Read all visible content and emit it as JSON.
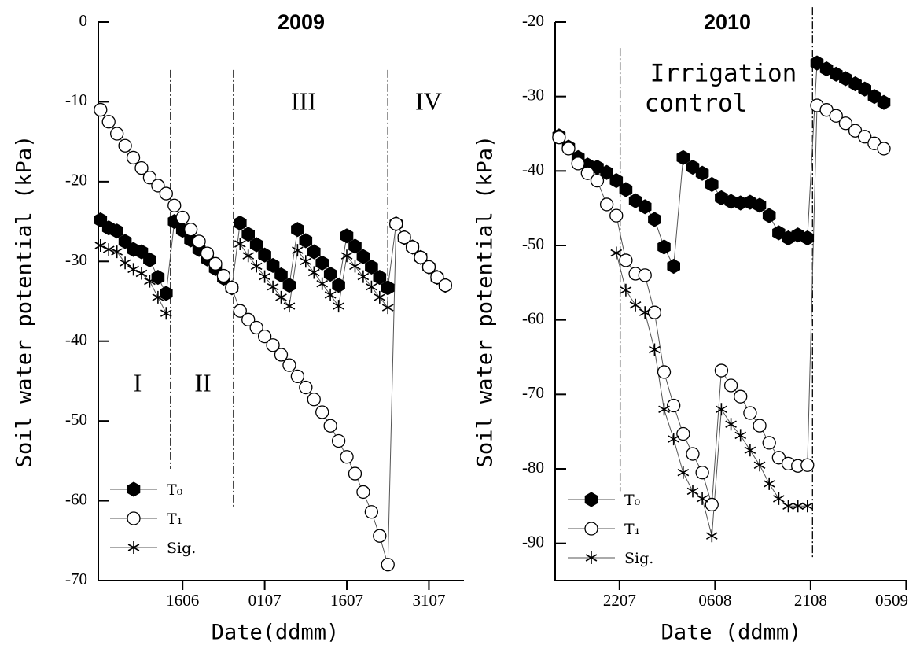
{
  "chart_data": [
    {
      "type": "line",
      "title": "2009",
      "x_label": "Date(ddmm)",
      "y_label": "Soil water potential (kPa)",
      "x": [
        152,
        153.5,
        155,
        156.5,
        158,
        159.5,
        161,
        162.5,
        164,
        165.5,
        167,
        168.5,
        170,
        171.5,
        173,
        174.5,
        176,
        177.5,
        179,
        180.5,
        182,
        183.5,
        185,
        186.5,
        188,
        189.5,
        191,
        192.5,
        194,
        195.5,
        197,
        198.5,
        200,
        201.5,
        203,
        204.5,
        206,
        207.5,
        209,
        210.5,
        212,
        213.5,
        215
      ],
      "xlim": [
        151.6,
        218.4
      ],
      "xticks": [
        {
          "value": 167,
          "label": "1606"
        },
        {
          "value": 182,
          "label": "0107"
        },
        {
          "value": 197,
          "label": "1607"
        },
        {
          "value": 212,
          "label": "3107"
        }
      ],
      "ylim": [
        -70,
        0
      ],
      "yticks": [
        0,
        -10,
        -20,
        -30,
        -40,
        -50,
        -60,
        -70
      ],
      "series": [
        {
          "name": "T₀",
          "marker": "hexagon",
          "color": "#000000",
          "values": [
            -24.8,
            -25.8,
            -26.2,
            -27.5,
            -28.5,
            -28.8,
            -29.8,
            -32,
            -34,
            -25,
            -26.1,
            -27.3,
            -28.5,
            -29.7,
            -30.9,
            -32.1,
            -33.3,
            -25.2,
            -26.6,
            -27.9,
            -29.2,
            -30.5,
            -31.7,
            -33,
            -26,
            -27.4,
            -28.8,
            -30.2,
            -31.6,
            -33,
            -26.8,
            -28.1,
            -29.4,
            -30.7,
            -32,
            -33.3,
            -25.3,
            -27,
            -28.2,
            -29.5,
            -30.7,
            -32,
            -33
          ]
        },
        {
          "name": "T₁",
          "marker": "circle",
          "color": "#ffffff",
          "values": [
            -11,
            -12.5,
            -14,
            -15.5,
            -17,
            -18.3,
            -19.5,
            -20.5,
            -21.5,
            -23,
            -24.5,
            -26,
            -27.5,
            -29,
            -30.3,
            -31.8,
            -33.3,
            -36.2,
            -37.3,
            -38.3,
            -39.4,
            -40.5,
            -41.7,
            -43,
            -44.4,
            -45.8,
            -47.3,
            -48.9,
            -50.6,
            -52.5,
            -54.5,
            -56.6,
            -58.9,
            -61.4,
            -64.4,
            -68,
            -25.3,
            -27,
            -28.2,
            -29.5,
            -30.7,
            -32,
            -33
          ]
        },
        {
          "name": "Sig.",
          "marker": "asterisk",
          "color": "#000000",
          "values": [
            -28,
            -28.5,
            -28.8,
            -30.2,
            -31,
            -31.5,
            -32.5,
            -34.5,
            -36.5,
            null,
            null,
            null,
            null,
            null,
            null,
            null,
            null,
            -27.8,
            -29.3,
            -30.6,
            -31.9,
            -33.2,
            -34.5,
            -35.6,
            -28.6,
            -30,
            -31.4,
            -32.8,
            -34.2,
            -35.6,
            -29.3,
            -30.6,
            -31.9,
            -33.2,
            -34.5,
            -35.8,
            null,
            null,
            null,
            null,
            null,
            null,
            null
          ]
        }
      ],
      "phase_lines": [
        {
          "x": 164.8,
          "y": [
            -6,
            -56
          ]
        },
        {
          "x": 176.3,
          "y": [
            -6,
            -61
          ]
        },
        {
          "x": 204.5,
          "y": [
            -6,
            -36
          ]
        }
      ],
      "annotations": [
        "I",
        "II",
        "III",
        "IV"
      ]
    },
    {
      "type": "line",
      "title": "2010",
      "x_label": "Date (ddmm)",
      "y_label": "Soil water potential (kPa)",
      "x": [
        193.5,
        195,
        196.5,
        198,
        199.5,
        201,
        202.5,
        204,
        205.5,
        207,
        208.5,
        210,
        211.5,
        213,
        214.5,
        216,
        217.5,
        219,
        220.5,
        222,
        223.5,
        225,
        226.5,
        228,
        229.5,
        231,
        232.5,
        234,
        235.5,
        237,
        238.5,
        240,
        241.5,
        243,
        244.5
      ],
      "xlim": [
        192.9,
        248.2
      ],
      "xticks": [
        {
          "value": 203,
          "label": "2207"
        },
        {
          "value": 218,
          "label": "0608"
        },
        {
          "value": 233,
          "label": "2108"
        },
        {
          "value": 248,
          "label": "0509"
        }
      ],
      "ylim": [
        -95,
        -20
      ],
      "yticks": [
        -20,
        -30,
        -40,
        -50,
        -60,
        -70,
        -80,
        -90
      ],
      "series": [
        {
          "name": "T₀",
          "marker": "hexagon",
          "color": "#000000",
          "values": [
            -35.3,
            -36.8,
            -38.2,
            -39.2,
            -39.5,
            -40.2,
            -41.3,
            -42.5,
            -44,
            -44.8,
            -46.5,
            -50.2,
            -52.8,
            -38.2,
            -39.5,
            -40.3,
            -41.8,
            -43.6,
            -44.1,
            -44.3,
            -44.2,
            -44.6,
            -46,
            -48.3,
            -49,
            -48.6,
            -49,
            -25.5,
            -26.3,
            -27,
            -27.6,
            -28.3,
            -29,
            -30,
            -30.8
          ]
        },
        {
          "name": "T₁",
          "marker": "circle",
          "color": "#ffffff",
          "values": [
            -35.5,
            -37,
            -39,
            -40.3,
            -41.3,
            -44.5,
            -46,
            -52,
            -53.8,
            -54,
            -59,
            -67,
            -71.5,
            -75.3,
            -78,
            -80.5,
            -84.8,
            -66.8,
            -68.8,
            -70.3,
            -72.5,
            -74.2,
            -76.5,
            -78.5,
            -79.3,
            -79.6,
            -79.5,
            -31.2,
            -31.8,
            -32.6,
            -33.6,
            -34.6,
            -35.4,
            -36.3,
            -37
          ]
        },
        {
          "name": "Sig.",
          "marker": "asterisk",
          "color": "#000000",
          "values": [
            null,
            null,
            null,
            null,
            null,
            null,
            -51,
            -56,
            -58,
            -59,
            -64,
            -72,
            -76,
            -80.5,
            -83,
            -84,
            -89,
            -72,
            -74,
            -75.5,
            -77.5,
            -79.5,
            -82,
            -84,
            -85,
            -85,
            -85,
            null,
            null,
            null,
            null,
            null,
            null,
            null,
            null
          ]
        }
      ],
      "phase_lines": [
        {
          "x": 203.1,
          "y": [
            -23.5,
            -83
          ]
        },
        {
          "x": 233.3,
          "y": [
            -18,
            -92
          ]
        }
      ],
      "annotations": [
        "Irrigation",
        "control"
      ]
    }
  ]
}
